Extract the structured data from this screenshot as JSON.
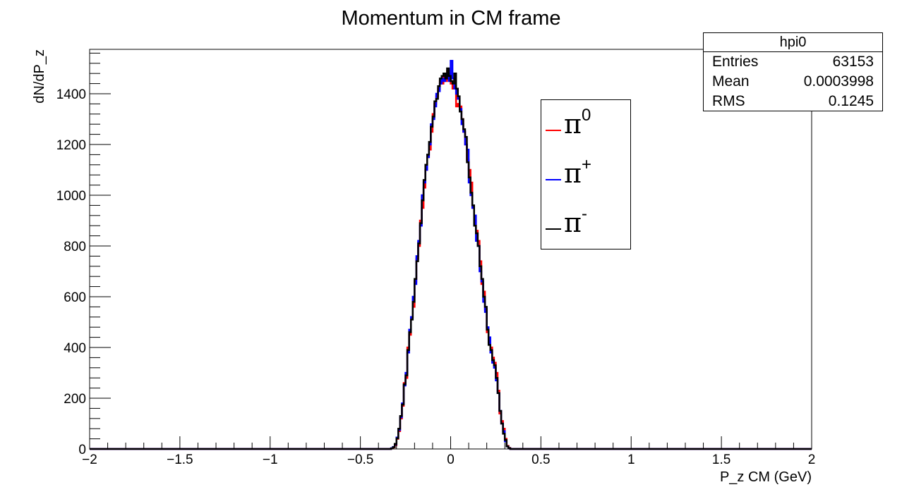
{
  "chart_data": {
    "type": "histogram",
    "title": "Momentum in CM frame",
    "xlabel": "P_z CM (GeV)",
    "ylabel": "dN/dP_z",
    "xlim": [
      -2,
      2
    ],
    "ylim": [
      0,
      1575
    ],
    "x_ticks": [
      "−2",
      "−1.5",
      "−1",
      "−0.5",
      "0",
      "0.5",
      "1",
      "1.5",
      "2"
    ],
    "x_tick_values": [
      -2,
      -1.5,
      -1,
      -0.5,
      0,
      0.5,
      1,
      1.5,
      2
    ],
    "y_ticks": [
      "0",
      "200",
      "400",
      "600",
      "800",
      "1000",
      "1200",
      "1400"
    ],
    "y_tick_values": [
      0,
      200,
      400,
      600,
      800,
      1000,
      1200,
      1400
    ],
    "grid": false,
    "legend_position": "top-right",
    "bin_width": 0.01,
    "bin_centers": [
      -0.325,
      -0.315,
      -0.305,
      -0.295,
      -0.285,
      -0.275,
      -0.265,
      -0.255,
      -0.245,
      -0.235,
      -0.225,
      -0.215,
      -0.205,
      -0.195,
      -0.185,
      -0.175,
      -0.165,
      -0.155,
      -0.145,
      -0.135,
      -0.125,
      -0.115,
      -0.105,
      -0.095,
      -0.085,
      -0.075,
      -0.065,
      -0.055,
      -0.045,
      -0.035,
      -0.025,
      -0.015,
      -0.005,
      0.005,
      0.015,
      0.025,
      0.035,
      0.045,
      0.055,
      0.065,
      0.075,
      0.085,
      0.095,
      0.105,
      0.115,
      0.125,
      0.135,
      0.145,
      0.155,
      0.165,
      0.175,
      0.185,
      0.195,
      0.205,
      0.215,
      0.225,
      0.235,
      0.245,
      0.255,
      0.265,
      0.275,
      0.285,
      0.295,
      0.305,
      0.315,
      0.325
    ],
    "series": [
      {
        "name": "π⁰",
        "color": "#ff0000",
        "values": [
          2,
          6,
          15,
          40,
          70,
          120,
          170,
          260,
          280,
          400,
          450,
          520,
          560,
          660,
          750,
          800,
          900,
          950,
          1030,
          1100,
          1150,
          1180,
          1250,
          1320,
          1360,
          1390,
          1420,
          1450,
          1440,
          1470,
          1450,
          1490,
          1460,
          1440,
          1420,
          1430,
          1350,
          1360,
          1350,
          1300,
          1250,
          1200,
          1140,
          1100,
          1050,
          950,
          900,
          860,
          820,
          740,
          650,
          620,
          550,
          460,
          420,
          400,
          360,
          340,
          300,
          230,
          140,
          110,
          80,
          40,
          12,
          4
        ]
      },
      {
        "name": "π⁺",
        "color": "#0000ff",
        "values": [
          3,
          8,
          18,
          45,
          75,
          125,
          180,
          250,
          300,
          380,
          470,
          520,
          600,
          650,
          760,
          820,
          880,
          1000,
          1050,
          1100,
          1150,
          1200,
          1280,
          1300,
          1350,
          1400,
          1410,
          1440,
          1460,
          1450,
          1470,
          1480,
          1450,
          1530,
          1460,
          1420,
          1400,
          1380,
          1340,
          1280,
          1250,
          1200,
          1180,
          1050,
          1000,
          950,
          920,
          820,
          800,
          700,
          660,
          580,
          540,
          480,
          440,
          380,
          340,
          320,
          270,
          220,
          150,
          100,
          70,
          30,
          10,
          3
        ]
      },
      {
        "name": "π⁻",
        "color": "#000000",
        "values": [
          2,
          7,
          20,
          42,
          80,
          130,
          175,
          255,
          290,
          390,
          460,
          510,
          580,
          670,
          740,
          810,
          890,
          980,
          1060,
          1120,
          1160,
          1210,
          1270,
          1310,
          1370,
          1380,
          1430,
          1460,
          1470,
          1480,
          1460,
          1500,
          1470,
          1450,
          1440,
          1480,
          1420,
          1390,
          1330,
          1300,
          1260,
          1230,
          1130,
          1070,
          1010,
          960,
          880,
          850,
          800,
          720,
          670,
          600,
          560,
          470,
          410,
          390,
          350,
          330,
          280,
          220,
          150,
          100,
          60,
          35,
          10,
          3
        ]
      }
    ]
  },
  "stats": {
    "title": "hpi0",
    "rows": [
      {
        "label": "Entries",
        "value": "63153"
      },
      {
        "label": "Mean",
        "value": "0.0003998"
      },
      {
        "label": "RMS",
        "value": "0.1245"
      }
    ]
  },
  "legend": {
    "items": [
      {
        "base": "π",
        "sup": "0",
        "color": "#ff0000"
      },
      {
        "base": "π",
        "sup": "+",
        "color": "#0000ff"
      },
      {
        "base": "π",
        "sup": "-",
        "color": "#000000"
      }
    ]
  }
}
